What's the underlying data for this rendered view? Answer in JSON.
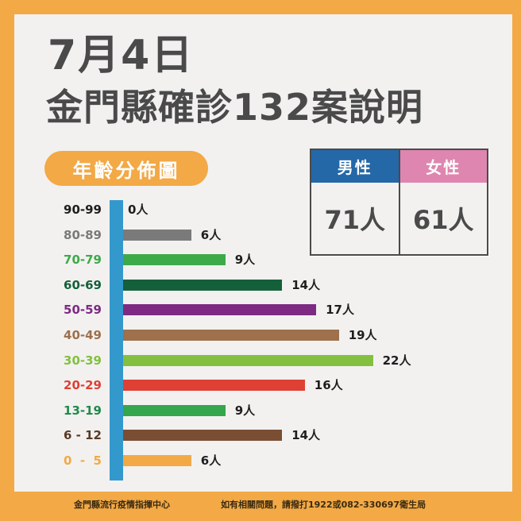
{
  "header": {
    "date": "7月4日",
    "title": "金門縣確診132案說明"
  },
  "age_section": {
    "label": "年齡分佈圖"
  },
  "gender": {
    "male": {
      "label": "男性",
      "value": "71人",
      "color": "#2468a8"
    },
    "female": {
      "label": "女性",
      "value": "61人",
      "color": "#de86b0"
    }
  },
  "footer": {
    "left": "金門縣流行疫情指揮中心",
    "right": "如有相關問題，請撥打1922或082-330697衛生局"
  },
  "colors": {
    "border": "#f2a946",
    "panel": "#f2f1f0",
    "axis": "#3399cc",
    "title": "#4a4a4a"
  },
  "chart_data": {
    "type": "bar",
    "orientation": "horizontal",
    "title": "年齡分佈圖",
    "xlabel": "",
    "ylabel": "年齡",
    "unit": "人",
    "categories": [
      "90-99",
      "80-89",
      "70-79",
      "60-69",
      "50-59",
      "40-49",
      "30-39",
      "20-29",
      "13-19",
      "6 - 12",
      "0  -  5"
    ],
    "values": [
      0,
      6,
      9,
      14,
      17,
      19,
      22,
      16,
      9,
      14,
      6
    ],
    "value_labels": [
      "0人",
      "6人",
      "9人",
      "14人",
      "17人",
      "19人",
      "22人",
      "16人",
      "9人",
      "14人",
      "6人"
    ],
    "bar_colors": [
      "#1e1e1e",
      "#7a7a7a",
      "#3daa4a",
      "#14603a",
      "#7e2a82",
      "#9e704c",
      "#84c040",
      "#de4034",
      "#34a64c",
      "#7a4e32",
      "#f2a946"
    ],
    "label_colors": [
      "#1e1e1e",
      "#7a7a7a",
      "#3daa4a",
      "#14603a",
      "#7e2a82",
      "#9e704c",
      "#84c040",
      "#de4034",
      "#1f8a4c",
      "#5a3a24",
      "#f2a946"
    ],
    "total": 132,
    "gender": {
      "male": 71,
      "female": 61
    },
    "grid": false,
    "legend": false
  }
}
